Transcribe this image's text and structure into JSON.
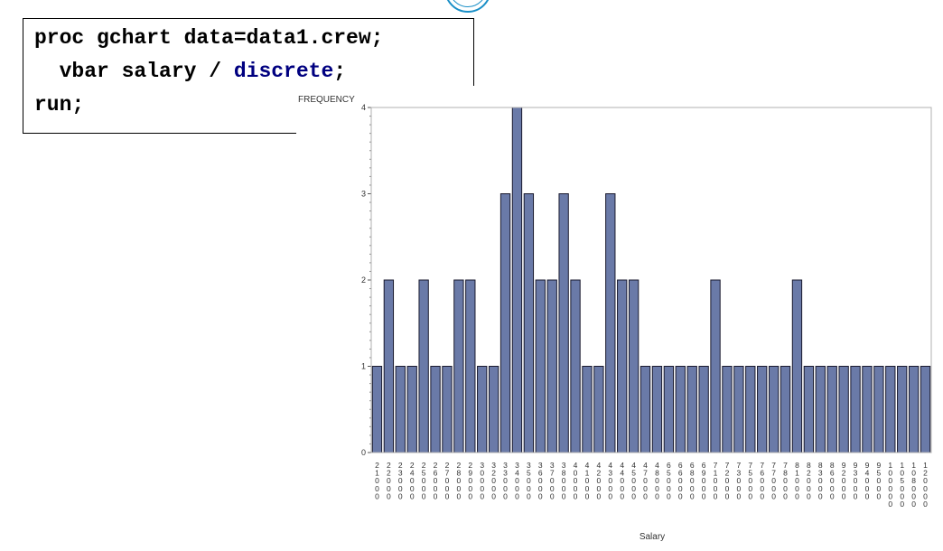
{
  "code": {
    "line1": "proc gchart data=data1.crew;",
    "line2_prefix": "  vbar salary / ",
    "line2_keyword": "discrete",
    "line2_suffix": ";",
    "line3": "run;"
  },
  "colors": {
    "bar_fill": "#6a7aa8",
    "bar_stroke": "#1a1a2e",
    "frame": "#b0b0b0",
    "keyword": "#000080",
    "accent": "#1a8fc7"
  },
  "chart_data": {
    "type": "bar",
    "ylabel": "FREQUENCY",
    "xlabel": "Salary",
    "ylim": [
      0,
      4
    ],
    "yticks": [
      0,
      1,
      2,
      3,
      4
    ],
    "grid": false,
    "categories": [
      "21000",
      "22000",
      "23000",
      "24000",
      "25000",
      "26000",
      "27000",
      "28000",
      "29000",
      "30000",
      "32000",
      "33000",
      "34000",
      "35000",
      "36000",
      "37000",
      "38000",
      "40000",
      "41000",
      "42000",
      "43000",
      "44000",
      "45000",
      "47000",
      "48000",
      "65000",
      "66000",
      "68000",
      "69000",
      "71000",
      "72000",
      "73000",
      "75000",
      "76000",
      "77000",
      "78000",
      "81000",
      "82000",
      "83000",
      "86000",
      "92000",
      "93000",
      "94000",
      "95000",
      "100000",
      "105000",
      "108000",
      "120000"
    ],
    "values": [
      1,
      2,
      1,
      1,
      2,
      1,
      1,
      2,
      2,
      1,
      1,
      3,
      4,
      3,
      2,
      2,
      3,
      2,
      1,
      1,
      3,
      2,
      2,
      1,
      1,
      1,
      1,
      1,
      1,
      2,
      1,
      1,
      1,
      1,
      1,
      1,
      2,
      1,
      1,
      1,
      1,
      1,
      1,
      1,
      1,
      1,
      1,
      1
    ]
  }
}
